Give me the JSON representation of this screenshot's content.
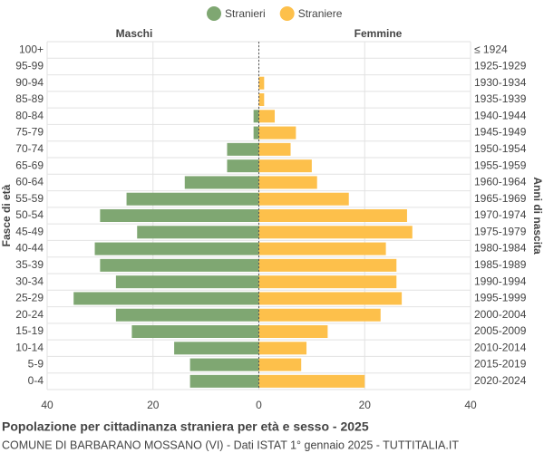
{
  "chart_data": {
    "type": "pyramid",
    "title": "Popolazione per cittadinanza straniera per età e sesso - 2025",
    "subtitle": "COMUNE DI BARBARANO MOSSANO (VI) - Dati ISTAT 1° gennaio 2025 - TUTTITALIA.IT",
    "left_label": "Maschi",
    "right_label": "Femmine",
    "y_title": "Fasce di età",
    "y2_title": "Anni di nascita",
    "categories": [
      "100+",
      "95-99",
      "90-94",
      "85-89",
      "80-84",
      "75-79",
      "70-74",
      "65-69",
      "60-64",
      "55-59",
      "50-54",
      "45-49",
      "40-44",
      "35-39",
      "30-34",
      "25-29",
      "20-24",
      "15-19",
      "10-14",
      "5-9",
      "0-4"
    ],
    "birth_years": [
      "≤ 1924",
      "1925-1929",
      "1930-1934",
      "1935-1939",
      "1940-1944",
      "1945-1949",
      "1950-1954",
      "1955-1959",
      "1960-1964",
      "1965-1969",
      "1970-1974",
      "1975-1979",
      "1980-1984",
      "1985-1989",
      "1990-1994",
      "1995-1999",
      "2000-2004",
      "2005-2009",
      "2010-2014",
      "2015-2019",
      "2020-2024"
    ],
    "series": [
      {
        "name": "Stranieri",
        "color": "#7fa772",
        "side": "left",
        "values": [
          0,
          0,
          0,
          0,
          1,
          1,
          6,
          6,
          14,
          25,
          30,
          23,
          31,
          30,
          27,
          35,
          27,
          24,
          16,
          13,
          13
        ]
      },
      {
        "name": "Straniere",
        "color": "#fdc04b",
        "side": "right",
        "values": [
          0,
          0,
          1,
          1,
          3,
          7,
          6,
          10,
          11,
          17,
          28,
          29,
          24,
          26,
          26,
          27,
          23,
          13,
          9,
          8,
          20
        ]
      }
    ],
    "xlim": [
      -40,
      40
    ],
    "xticks": [
      {
        "value": -40,
        "label": "40"
      },
      {
        "value": -20,
        "label": "20"
      },
      0,
      20,
      40
    ],
    "grid": true
  }
}
